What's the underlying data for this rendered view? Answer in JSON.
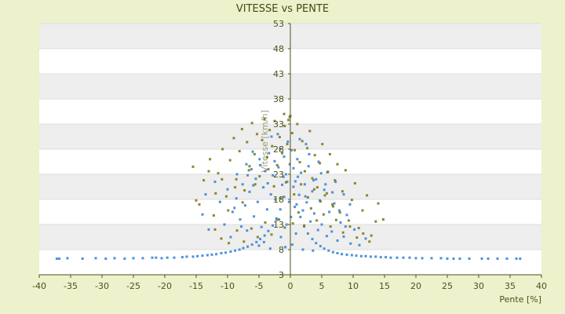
{
  "chart_data": {
    "type": "scatter",
    "title": "VITESSE vs PENTE",
    "xlabel": "Pente [%]",
    "ylabel": "Vitesse [km/h]",
    "xlim": [
      -40,
      40
    ],
    "ylim": [
      3,
      53
    ],
    "x_ticks": [
      "-40",
      "-35",
      "-30",
      "-25",
      "-20",
      "-15",
      "-10",
      "-5",
      "0",
      "5",
      "10",
      "15",
      "20",
      "25",
      "30",
      "35",
      "40"
    ],
    "y_ticks": [
      "3",
      "8",
      "13",
      "18",
      "23",
      "28",
      "33",
      "38",
      "43",
      "48",
      "53"
    ],
    "grid": true,
    "legend": "none",
    "colors": {
      "background": "#edf1cc",
      "plot_band_light": "#ffffff",
      "plot_band_dark": "#eeeeee",
      "axis": "#4d5218",
      "series_blue": "#3a86d8",
      "series_olive": "#7d7a1c"
    },
    "series": [
      {
        "color": "#3a86d8",
        "points": [
          [
            -37.2,
            6.2
          ],
          [
            -36.8,
            6.2
          ],
          [
            -35.5,
            6.3
          ],
          [
            -33.1,
            6.2
          ],
          [
            -31.0,
            6.3
          ],
          [
            -29.4,
            6.2
          ],
          [
            -28.0,
            6.3
          ],
          [
            -26.4,
            6.2
          ],
          [
            -25.0,
            6.3
          ],
          [
            -23.5,
            6.3
          ],
          [
            -22.0,
            6.4
          ],
          [
            -21.4,
            6.4
          ],
          [
            -20.5,
            6.3
          ],
          [
            -19.6,
            6.4
          ],
          [
            -18.5,
            6.4
          ],
          [
            -17.2,
            6.5
          ],
          [
            -16.5,
            6.6
          ],
          [
            -15.5,
            6.6
          ],
          [
            -14.8,
            6.7
          ],
          [
            -14.0,
            6.8
          ],
          [
            -13.2,
            6.9
          ],
          [
            -12.5,
            7.0
          ],
          [
            -11.8,
            7.1
          ],
          [
            -11.0,
            7.3
          ],
          [
            -10.3,
            7.4
          ],
          [
            -9.5,
            7.6
          ],
          [
            -8.8,
            7.8
          ],
          [
            -8.1,
            8.0
          ],
          [
            -7.5,
            8.3
          ],
          [
            -6.8,
            8.6
          ],
          [
            -6.1,
            9.0
          ],
          [
            -5.4,
            9.5
          ],
          [
            -4.8,
            10.1
          ],
          [
            -4.1,
            10.8
          ],
          [
            -3.5,
            11.7
          ],
          [
            -2.8,
            12.8
          ],
          [
            -2.2,
            14.2
          ],
          [
            -1.6,
            16.0
          ],
          [
            -1.0,
            18.5
          ],
          [
            -0.5,
            21.5
          ],
          [
            0.5,
            20.5
          ],
          [
            1.0,
            17.0
          ],
          [
            1.6,
            14.5
          ],
          [
            2.2,
            12.6
          ],
          [
            2.8,
            11.2
          ],
          [
            3.5,
            10.1
          ],
          [
            4.1,
            9.3
          ],
          [
            4.8,
            8.7
          ],
          [
            5.4,
            8.2
          ],
          [
            6.1,
            7.8
          ],
          [
            6.8,
            7.5
          ],
          [
            7.5,
            7.3
          ],
          [
            8.2,
            7.1
          ],
          [
            9.0,
            7.0
          ],
          [
            9.8,
            6.9
          ],
          [
            10.5,
            6.8
          ],
          [
            11.3,
            6.7
          ],
          [
            12.0,
            6.7
          ],
          [
            12.8,
            6.6
          ],
          [
            13.6,
            6.6
          ],
          [
            14.4,
            6.5
          ],
          [
            15.2,
            6.5
          ],
          [
            16.0,
            6.4
          ],
          [
            17.0,
            6.4
          ],
          [
            18.0,
            6.4
          ],
          [
            19.0,
            6.4
          ],
          [
            20.0,
            6.3
          ],
          [
            21.0,
            6.3
          ],
          [
            22.5,
            6.3
          ],
          [
            24.0,
            6.3
          ],
          [
            25.0,
            6.2
          ],
          [
            26.0,
            6.2
          ],
          [
            27.0,
            6.2
          ],
          [
            28.5,
            6.2
          ],
          [
            30.5,
            6.2
          ],
          [
            31.5,
            6.2
          ],
          [
            33.0,
            6.2
          ],
          [
            34.5,
            6.2
          ],
          [
            36.0,
            6.2
          ],
          [
            36.6,
            6.2
          ],
          [
            -9.2,
            15.5
          ],
          [
            -8.6,
            18.2
          ],
          [
            -8.0,
            14.0
          ],
          [
            -7.6,
            21.0
          ],
          [
            -7.2,
            16.8
          ],
          [
            -6.9,
            11.8
          ],
          [
            -6.5,
            19.5
          ],
          [
            -6.2,
            24.0
          ],
          [
            -5.8,
            14.6
          ],
          [
            -5.5,
            22.1
          ],
          [
            -5.2,
            17.5
          ],
          [
            -4.9,
            26.0
          ],
          [
            -4.6,
            12.5
          ],
          [
            -4.3,
            20.4
          ],
          [
            -4.0,
            23.6
          ],
          [
            -3.7,
            16.0
          ],
          [
            -3.4,
            27.2
          ],
          [
            -3.1,
            19.0
          ],
          [
            -2.8,
            22.8
          ],
          [
            -2.5,
            25.6
          ],
          [
            -2.2,
            13.9
          ],
          [
            -1.9,
            24.4
          ],
          [
            -1.6,
            28.0
          ],
          [
            -1.3,
            20.9
          ],
          [
            -1.0,
            26.5
          ],
          [
            -0.7,
            23.0
          ],
          [
            -0.4,
            29.5
          ],
          [
            -0.1,
            25.0
          ],
          [
            0.2,
            27.8
          ],
          [
            0.5,
            24.2
          ],
          [
            0.8,
            21.6
          ],
          [
            1.1,
            26.0
          ],
          [
            1.4,
            18.9
          ],
          [
            1.7,
            23.3
          ],
          [
            2.0,
            15.8
          ],
          [
            2.3,
            21.0
          ],
          [
            2.6,
            17.4
          ],
          [
            2.9,
            24.6
          ],
          [
            3.2,
            13.6
          ],
          [
            3.5,
            19.6
          ],
          [
            3.8,
            15.2
          ],
          [
            4.1,
            22.0
          ],
          [
            4.4,
            11.9
          ],
          [
            4.7,
            17.8
          ],
          [
            5.0,
            13.0
          ],
          [
            5.4,
            19.9
          ],
          [
            5.8,
            10.7
          ],
          [
            6.2,
            15.5
          ],
          [
            6.6,
            11.6
          ],
          [
            7.0,
            17.2
          ],
          [
            7.5,
            9.8
          ],
          [
            8.0,
            13.4
          ],
          [
            8.5,
            10.6
          ],
          [
            9.0,
            14.9
          ],
          [
            9.6,
            9.2
          ],
          [
            10.2,
            12.0
          ],
          [
            11.0,
            8.9
          ],
          [
            12.0,
            10.2
          ],
          [
            -10.0,
            20.0
          ],
          [
            -10.5,
            13.0
          ],
          [
            -11.2,
            17.5
          ],
          [
            -12.0,
            21.5
          ],
          [
            -13.0,
            12.0
          ],
          [
            -14.0,
            15.0
          ],
          [
            -13.5,
            19.0
          ],
          [
            -3.0,
            30.5
          ],
          [
            -2.0,
            31.0
          ],
          [
            -1.5,
            10.5
          ],
          [
            -0.8,
            8.5
          ],
          [
            0.3,
            9.0
          ],
          [
            0.9,
            11.2
          ],
          [
            1.5,
            30.0
          ],
          [
            2.5,
            29.0
          ],
          [
            3.0,
            27.0
          ],
          [
            4.5,
            25.5
          ],
          [
            6.0,
            23.5
          ],
          [
            7.2,
            21.5
          ],
          [
            8.5,
            19.0
          ],
          [
            9.5,
            17.0
          ],
          [
            -6.0,
            27.5
          ],
          [
            -7.0,
            25.0
          ],
          [
            -8.5,
            23.0
          ],
          [
            -9.5,
            10.5
          ],
          [
            -5.0,
            8.8
          ],
          [
            -4.2,
            9.5
          ],
          [
            -3.2,
            8.2
          ],
          [
            2.0,
            8.0
          ],
          [
            3.6,
            7.8
          ],
          [
            -0.2,
            17.5
          ],
          [
            -0.6,
            13.0
          ],
          [
            0.1,
            14.5
          ],
          [
            0.7,
            16.5
          ],
          [
            -1.1,
            22.5
          ],
          [
            1.2,
            22.5
          ],
          [
            -2.4,
            18.0
          ],
          [
            2.4,
            18.6
          ],
          [
            -3.6,
            21.2
          ],
          [
            3.7,
            21.8
          ],
          [
            -4.8,
            24.8
          ],
          [
            4.9,
            23.2
          ],
          [
            -5.9,
            20.8
          ],
          [
            5.6,
            21.0
          ],
          [
            -6.8,
            22.8
          ],
          [
            6.7,
            19.4
          ],
          [
            -7.8,
            12.6
          ],
          [
            7.8,
            15.8
          ],
          [
            -8.9,
            16.3
          ],
          [
            8.8,
            12.6
          ]
        ]
      },
      {
        "color": "#7d7a1c",
        "points": [
          [
            -15.5,
            24.5
          ],
          [
            -14.5,
            17.0
          ],
          [
            -13.8,
            21.8
          ],
          [
            -12.8,
            26.0
          ],
          [
            -12.2,
            14.8
          ],
          [
            -11.5,
            23.2
          ],
          [
            -10.8,
            28.0
          ],
          [
            -10.2,
            18.6
          ],
          [
            -9.6,
            25.8
          ],
          [
            -9.0,
            30.2
          ],
          [
            -8.6,
            22.0
          ],
          [
            -8.1,
            27.6
          ],
          [
            -7.7,
            32.0
          ],
          [
            -7.3,
            19.8
          ],
          [
            -6.9,
            29.4
          ],
          [
            -6.5,
            24.6
          ],
          [
            -6.1,
            33.2
          ],
          [
            -5.7,
            27.0
          ],
          [
            -5.3,
            31.0
          ],
          [
            -4.9,
            22.6
          ],
          [
            -4.5,
            29.8
          ],
          [
            -4.1,
            34.0
          ],
          [
            -3.7,
            26.4
          ],
          [
            -3.3,
            31.8
          ],
          [
            -2.9,
            28.6
          ],
          [
            -2.5,
            33.6
          ],
          [
            -2.1,
            24.8
          ],
          [
            -1.7,
            30.4
          ],
          [
            -1.3,
            27.2
          ],
          [
            -0.9,
            32.6
          ],
          [
            -0.5,
            29.0
          ],
          [
            -0.1,
            34.4
          ],
          [
            0.3,
            31.2
          ],
          [
            0.7,
            27.8
          ],
          [
            1.1,
            33.0
          ],
          [
            1.5,
            25.4
          ],
          [
            1.9,
            29.6
          ],
          [
            2.3,
            23.6
          ],
          [
            2.7,
            28.2
          ],
          [
            3.1,
            31.6
          ],
          [
            3.5,
            22.2
          ],
          [
            3.9,
            26.8
          ],
          [
            4.3,
            20.4
          ],
          [
            4.7,
            25.2
          ],
          [
            5.1,
            29.0
          ],
          [
            5.5,
            18.8
          ],
          [
            5.9,
            23.4
          ],
          [
            6.3,
            27.0
          ],
          [
            6.7,
            17.0
          ],
          [
            7.1,
            21.8
          ],
          [
            7.5,
            25.0
          ],
          [
            7.9,
            15.4
          ],
          [
            8.3,
            19.6
          ],
          [
            8.8,
            23.8
          ],
          [
            9.3,
            13.8
          ],
          [
            9.8,
            17.9
          ],
          [
            10.3,
            21.2
          ],
          [
            10.9,
            12.3
          ],
          [
            11.5,
            15.8
          ],
          [
            12.2,
            18.8
          ],
          [
            12.9,
            10.8
          ],
          [
            13.6,
            13.6
          ],
          [
            14.0,
            17.2
          ],
          [
            -12.0,
            12.0
          ],
          [
            -11.0,
            10.2
          ],
          [
            -9.8,
            9.3
          ],
          [
            -8.5,
            11.8
          ],
          [
            -7.4,
            9.6
          ],
          [
            -6.2,
            12.2
          ],
          [
            -5.2,
            10.5
          ],
          [
            -4.0,
            13.4
          ],
          [
            -3.0,
            11.0
          ],
          [
            -1.8,
            14.0
          ],
          [
            -0.9,
            12.4
          ],
          [
            0.4,
            13.2
          ],
          [
            1.3,
            15.4
          ],
          [
            2.2,
            12.8
          ],
          [
            3.3,
            16.2
          ],
          [
            4.2,
            13.8
          ],
          [
            5.3,
            15.0
          ],
          [
            6.4,
            12.6
          ],
          [
            7.3,
            13.9
          ],
          [
            8.4,
            11.4
          ],
          [
            9.5,
            12.6
          ],
          [
            10.6,
            10.4
          ],
          [
            11.6,
            11.2
          ],
          [
            12.6,
            9.6
          ],
          [
            -3.5,
            24.0
          ],
          [
            -2.6,
            20.6
          ],
          [
            -1.6,
            18.2
          ],
          [
            -0.7,
            21.4
          ],
          [
            0.6,
            19.0
          ],
          [
            1.7,
            21.0
          ],
          [
            2.8,
            18.4
          ],
          [
            3.8,
            20.0
          ],
          [
            4.8,
            17.6
          ],
          [
            5.8,
            19.2
          ],
          [
            6.8,
            16.6
          ],
          [
            -5.6,
            21.0
          ],
          [
            -6.6,
            23.8
          ],
          [
            -7.6,
            17.4
          ],
          [
            -8.8,
            20.4
          ],
          [
            -9.9,
            15.8
          ],
          [
            -10.9,
            22.0
          ],
          [
            -11.9,
            19.2
          ],
          [
            -13.0,
            23.6
          ],
          [
            14.8,
            14.0
          ],
          [
            -15.0,
            17.8
          ],
          [
            -0.3,
            33.8
          ],
          [
            0.0,
            34.6
          ],
          [
            -1.0,
            35.0
          ]
        ]
      }
    ]
  }
}
